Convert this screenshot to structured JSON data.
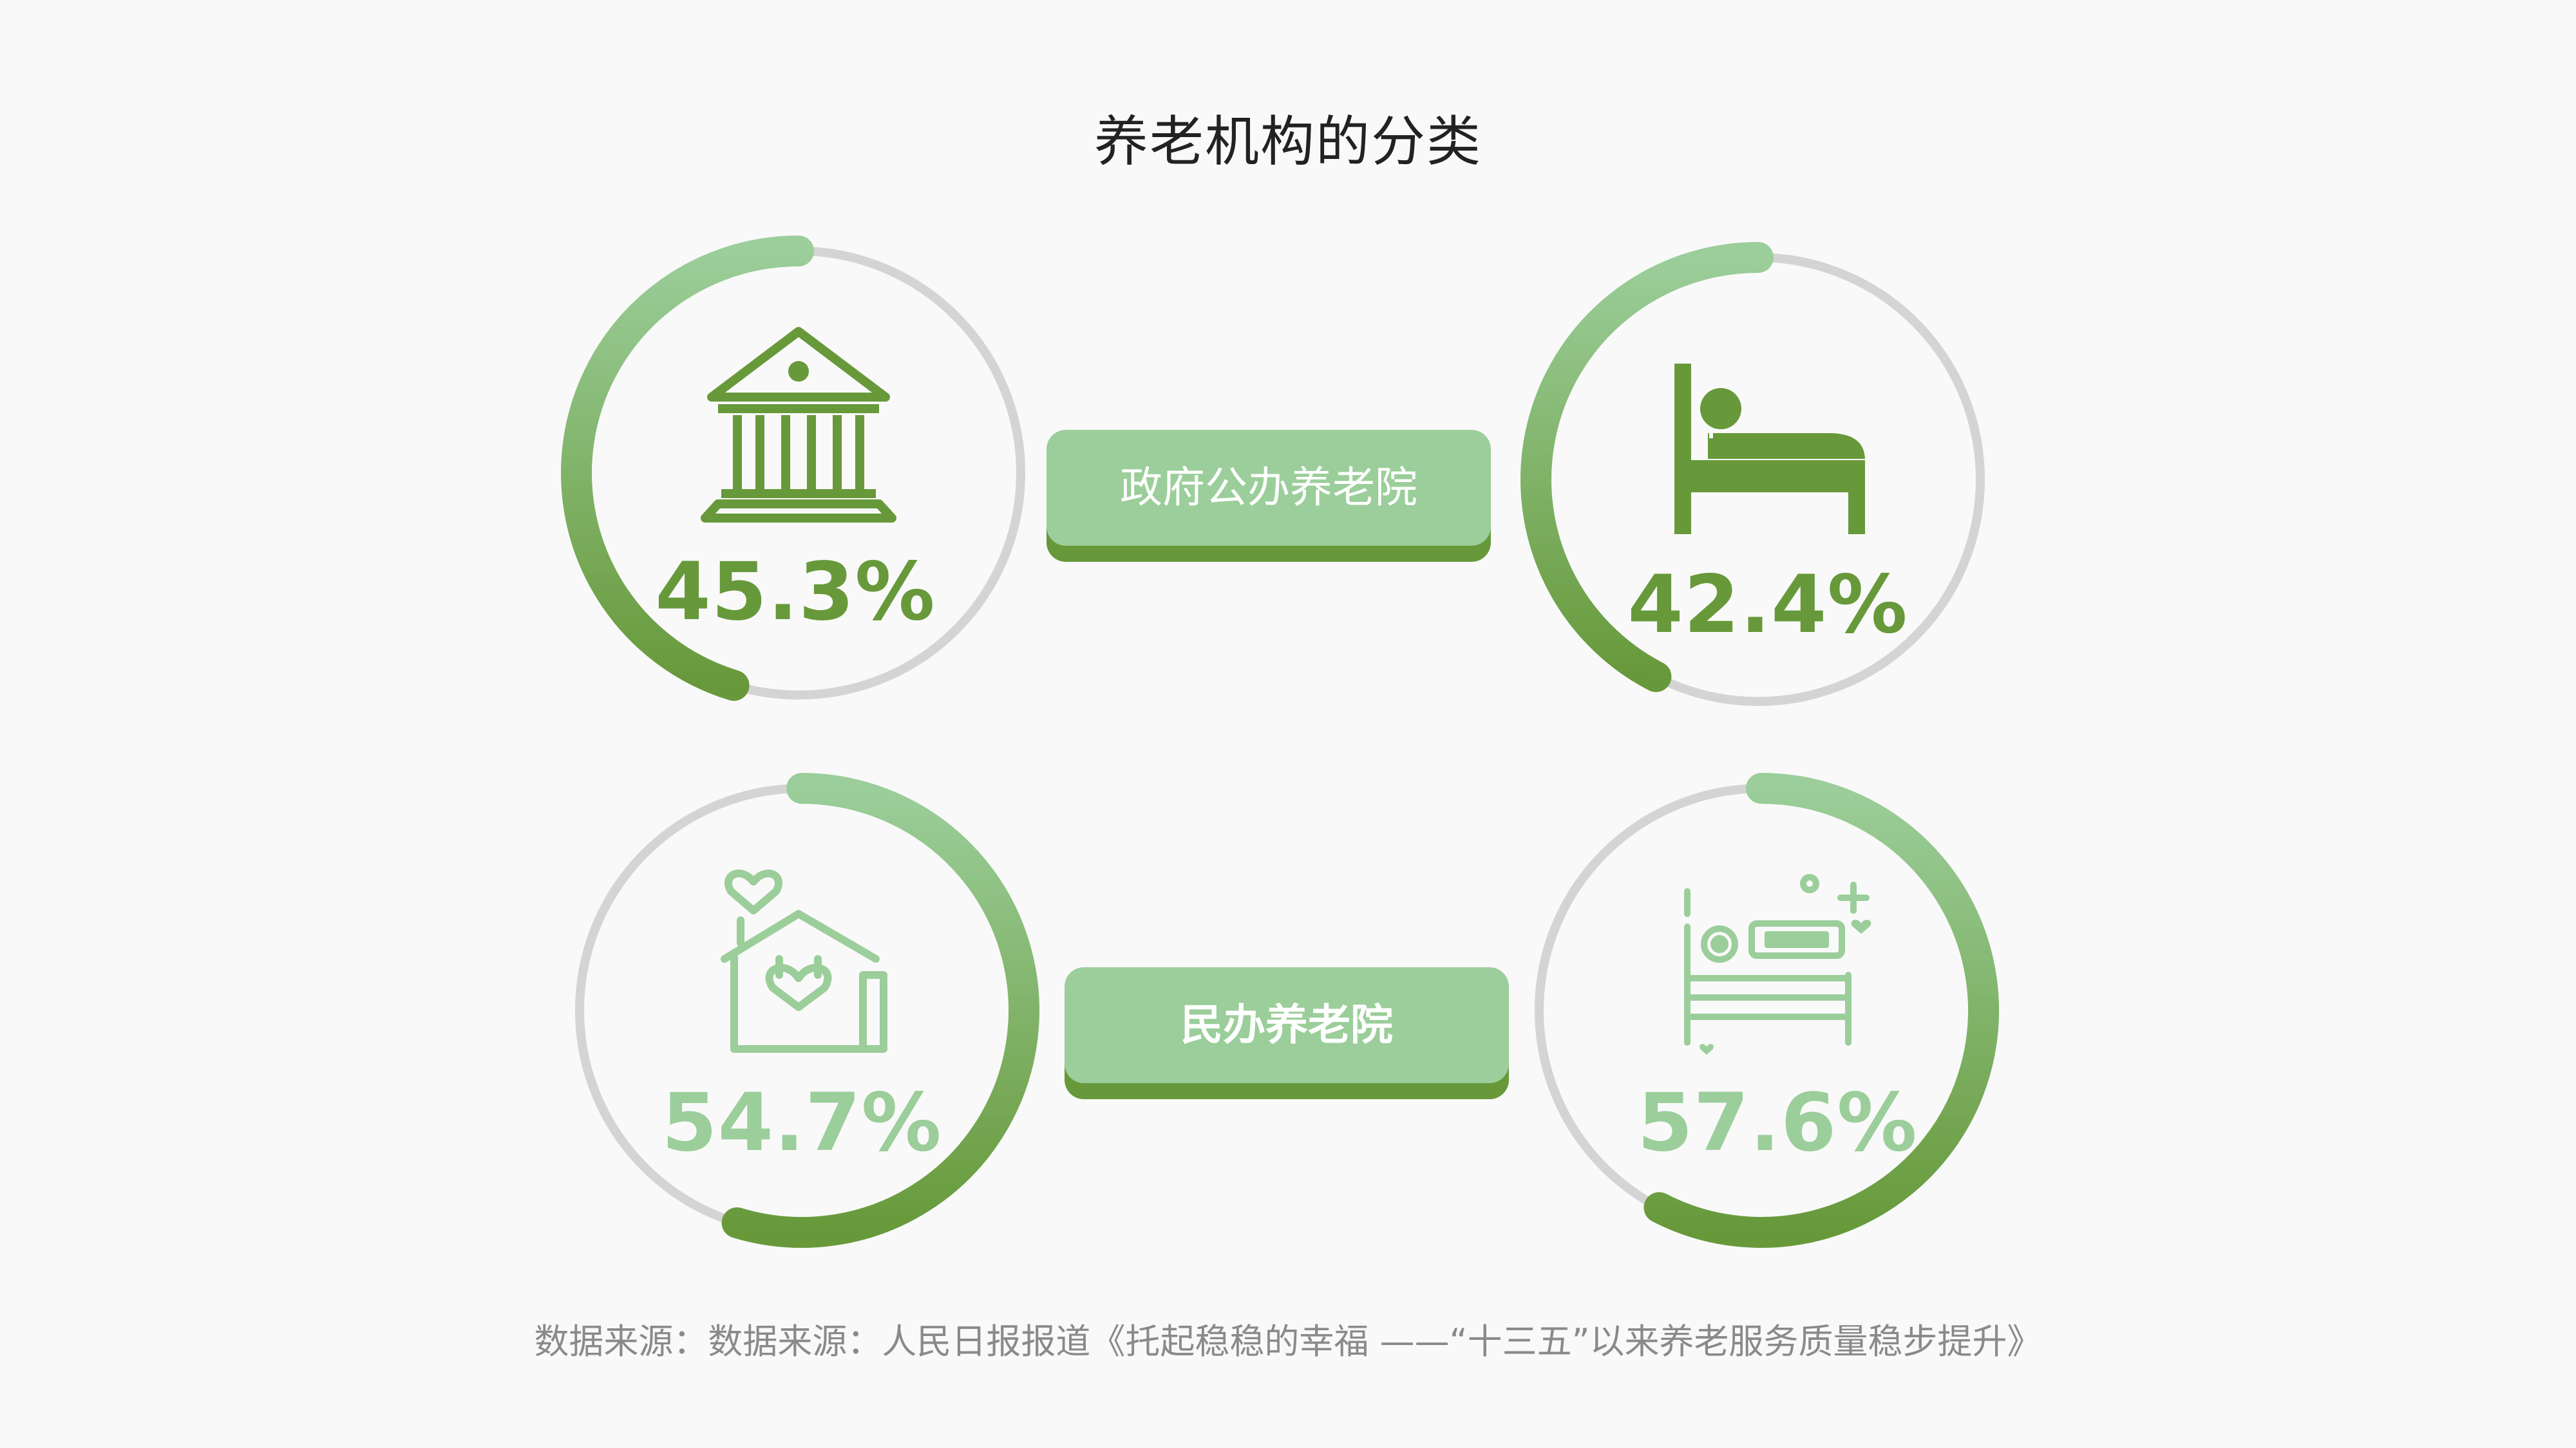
{
  "title": "养老机构的分类",
  "labels": {
    "public": "政府公办养老院",
    "private": "民办养老院"
  },
  "source": "数据来源：数据来源：人民日报报道《托起稳稳的幸福 ——“十三五”以来养老服务质量稳步提升》",
  "colors": {
    "dark_green": "#67993a",
    "light_green": "#9bce9a",
    "track_gray": "#d4d4d4",
    "background": "#f9f9f9"
  },
  "chart_data": {
    "type": "donut",
    "groups": [
      {
        "label": "政府公办养老院",
        "items": [
          {
            "icon": "government-building-icon",
            "value": 45.3,
            "display": "45.3%"
          },
          {
            "icon": "bed-icon",
            "value": 42.4,
            "display": "42.4%"
          }
        ]
      },
      {
        "label": "民办养老院",
        "items": [
          {
            "icon": "house-heart-icon",
            "value": 54.7,
            "display": "54.7%"
          },
          {
            "icon": "hospital-bed-icon",
            "value": 57.6,
            "display": "57.6%"
          }
        ]
      }
    ]
  }
}
